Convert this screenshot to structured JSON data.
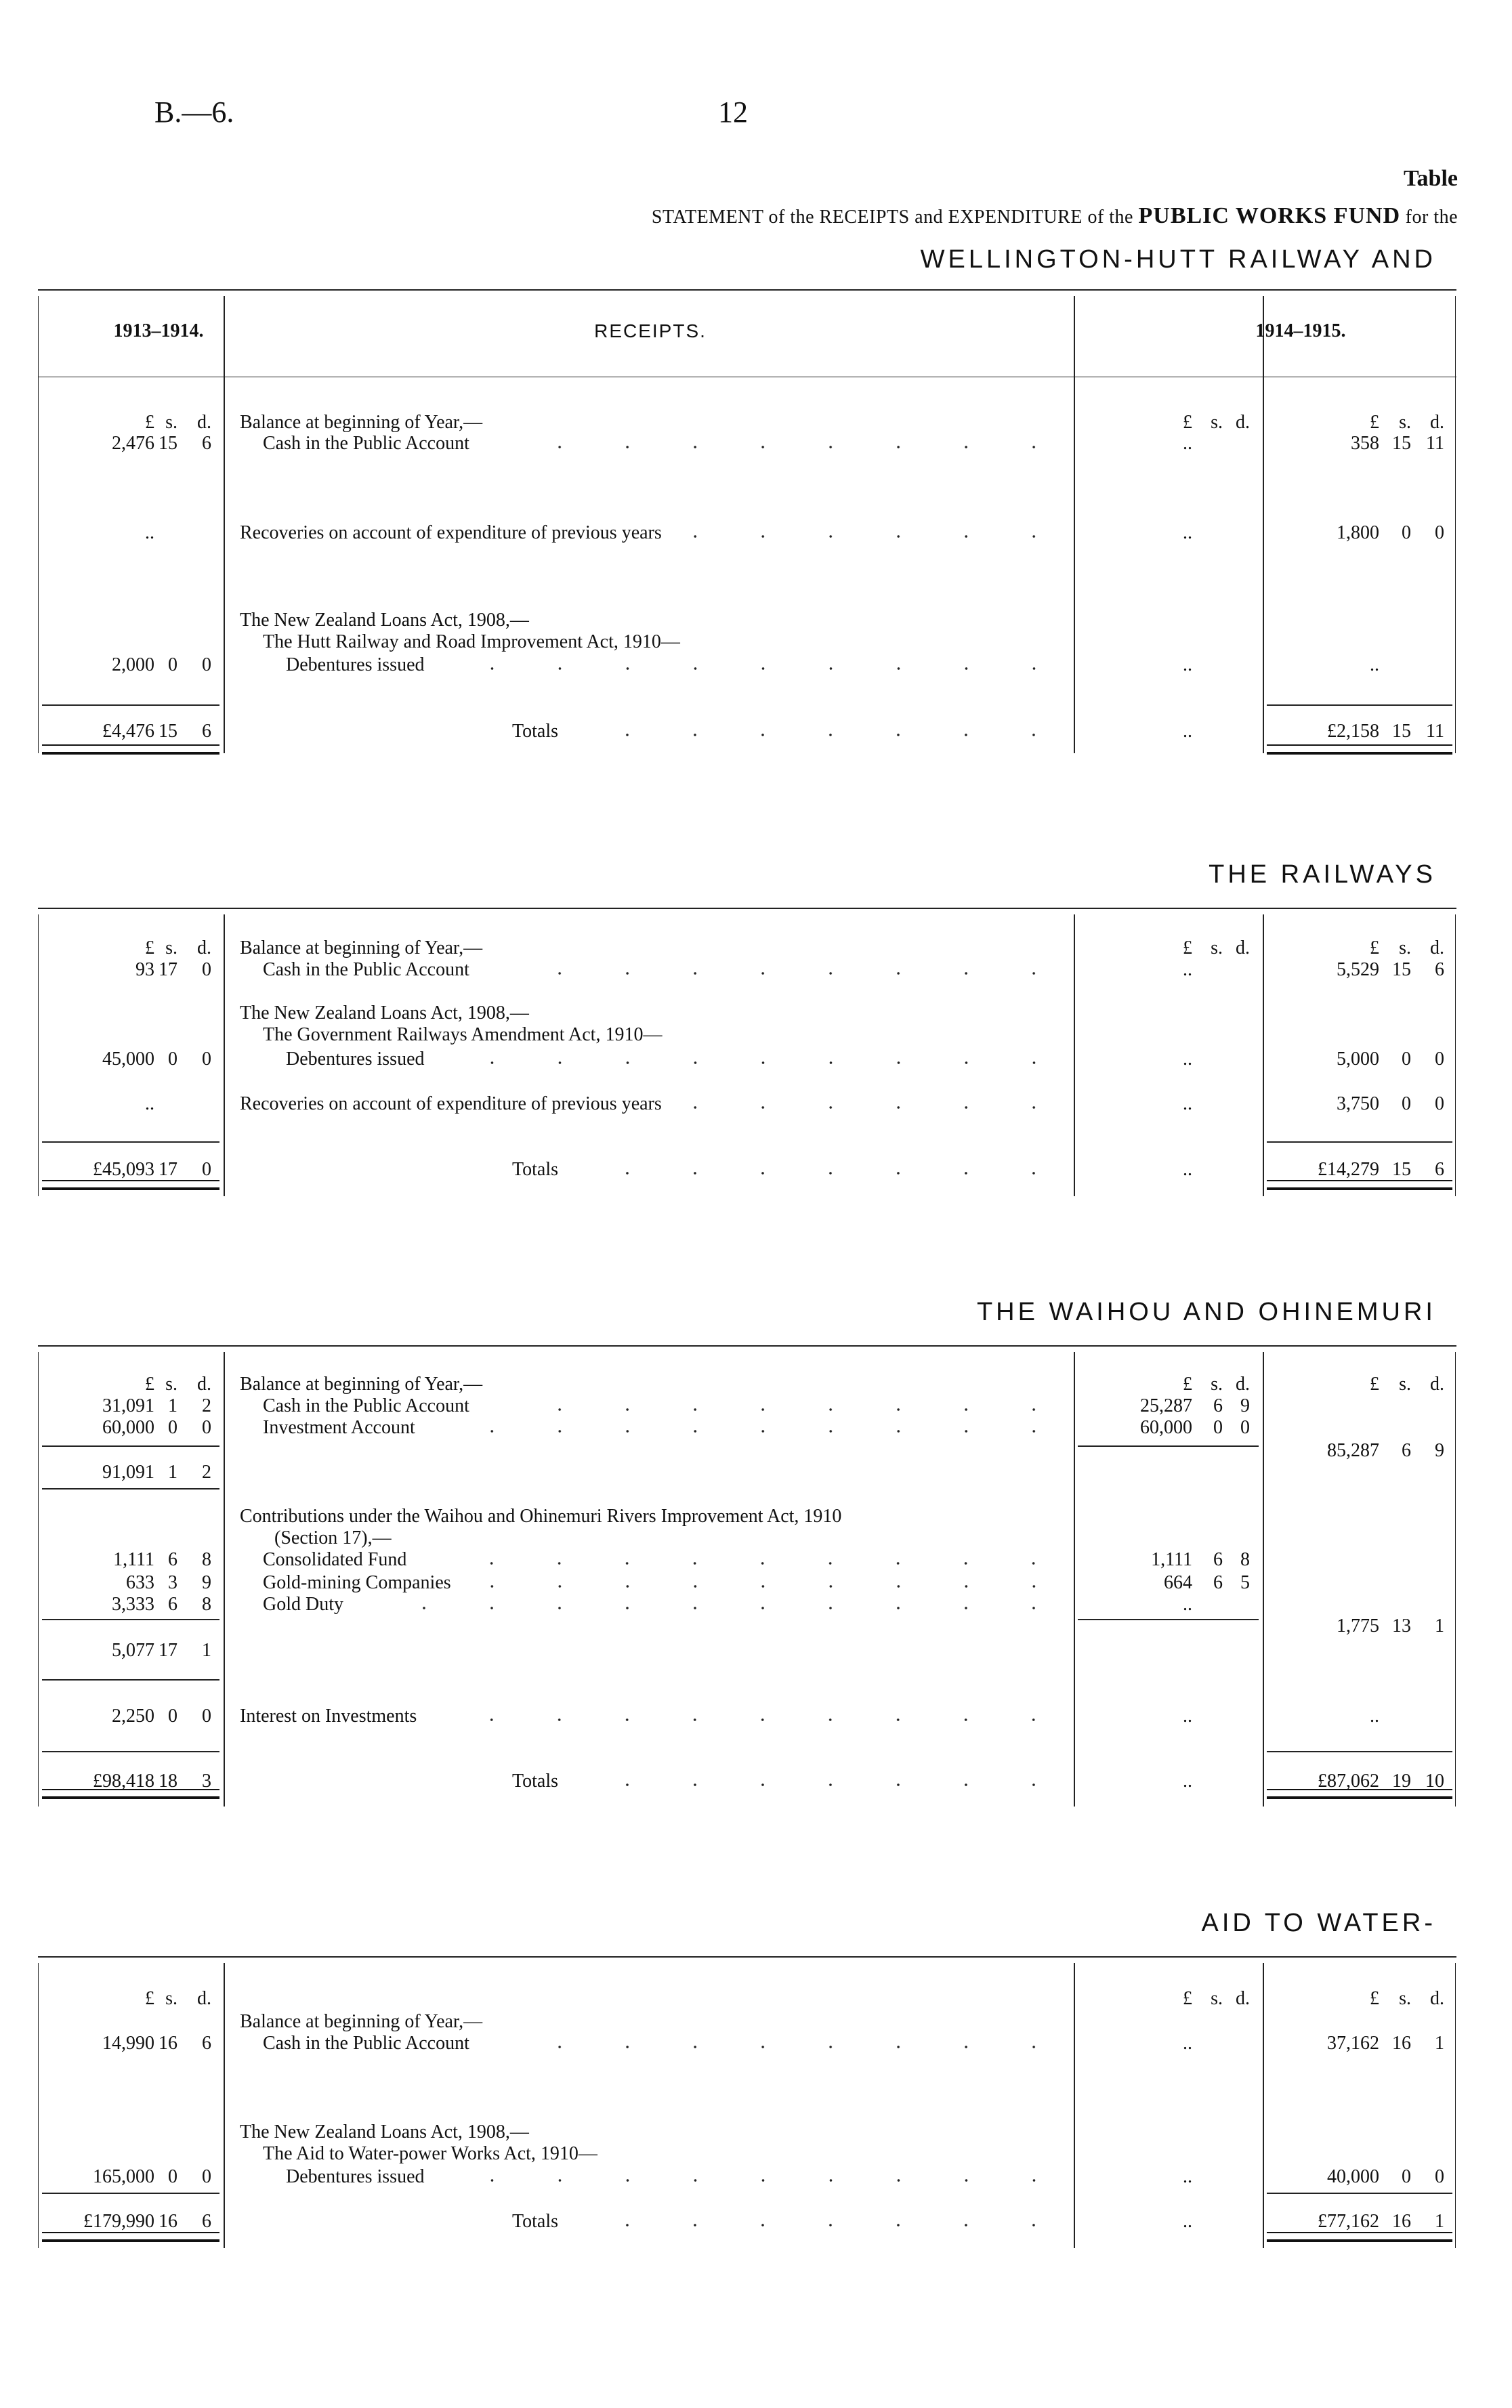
{
  "page": {
    "ref": "B.—6.",
    "number": "12",
    "table_label": "Table",
    "statement_prefix": "STATEMENT of the RECEIPTS and EXPENDITURE of the",
    "statement_fund": "PUBLIC WORKS FUND",
    "statement_suffix": "for the"
  },
  "sections": [
    {
      "title": "WELLINGTON-HUTT RAILWAY AND",
      "header": {
        "left": "1913–1914.",
        "center": "RECEIPTS.",
        "right": "1914–1915."
      },
      "rows": [
        {
          "col1": [
            "£",
            "s.",
            "d."
          ],
          "desc": "Balance at beginning of Year,—",
          "indent": 0,
          "col3": [
            "£",
            "s.",
            "d."
          ],
          "col4": [
            "£",
            "s.",
            "d."
          ]
        },
        {
          "col1": [
            "2,476",
            "15",
            "6"
          ],
          "desc": "Cash in the Public Account",
          "indent": 1,
          "leader": true,
          "col3": [
            "..",
            "",
            ""
          ],
          "col4": [
            "358",
            "15",
            "11"
          ]
        },
        {
          "col1": [
            "..",
            "",
            ""
          ],
          "desc": "Recoveries on account of expenditure of previous years",
          "indent": 0,
          "leader": true,
          "col3": [
            "..",
            "",
            ""
          ],
          "col4": [
            "1,800",
            "0",
            "0"
          ]
        },
        {
          "desc": "The New Zealand Loans Act, 1908,—",
          "indent": 0
        },
        {
          "desc": "The Hutt Railway and Road Improvement Act, 1910—",
          "indent": 1
        },
        {
          "col1": [
            "2,000",
            "0",
            "0"
          ],
          "desc": "Debentures issued",
          "indent": 2,
          "leader": true,
          "col3": [
            "..",
            "",
            ""
          ],
          "col4": [
            "..",
            "",
            ""
          ]
        },
        {
          "col1": [
            "£4,476",
            "15",
            "6"
          ],
          "desc": "Totals",
          "total": true,
          "leader": true,
          "col3": [
            "..",
            "",
            ""
          ],
          "col4": [
            "£2,158",
            "15",
            "11"
          ]
        }
      ]
    },
    {
      "title": "THE RAILWAYS",
      "rows": [
        {
          "col1": [
            "£",
            "s.",
            "d."
          ],
          "desc": "Balance at beginning of Year,—",
          "indent": 0,
          "col3": [
            "£",
            "s.",
            "d."
          ],
          "col4": [
            "£",
            "s.",
            "d."
          ]
        },
        {
          "col1": [
            "93",
            "17",
            "0"
          ],
          "desc": "Cash in the Public Account",
          "indent": 1,
          "leader": true,
          "col3": [
            "..",
            "",
            ""
          ],
          "col4": [
            "5,529",
            "15",
            "6"
          ]
        },
        {
          "desc": "The New Zealand Loans Act, 1908,—",
          "indent": 0
        },
        {
          "desc": "The Government Railways Amendment Act, 1910—",
          "indent": 1
        },
        {
          "col1": [
            "45,000",
            "0",
            "0"
          ],
          "desc": "Debentures issued",
          "indent": 2,
          "leader": true,
          "col3": [
            "..",
            "",
            ""
          ],
          "col4": [
            "5,000",
            "0",
            "0"
          ]
        },
        {
          "col1": [
            "..",
            "",
            ""
          ],
          "desc": "Recoveries on account of expenditure of previous years",
          "indent": 0,
          "leader": true,
          "col3": [
            "..",
            "",
            ""
          ],
          "col4": [
            "3,750",
            "0",
            "0"
          ]
        },
        {
          "col1": [
            "£45,093",
            "17",
            "0"
          ],
          "desc": "Totals",
          "total": true,
          "leader": true,
          "col3": [
            "..",
            "",
            ""
          ],
          "col4": [
            "£14,279",
            "15",
            "6"
          ]
        }
      ]
    },
    {
      "title": "THE WAIHOU AND OHINEMURI",
      "rows": [
        {
          "col1": [
            "£",
            "s.",
            "d."
          ],
          "desc": "Balance at beginning of Year,—",
          "indent": 0,
          "col3": [
            "£",
            "s.",
            "d."
          ],
          "col4": [
            "£",
            "s.",
            "d."
          ]
        },
        {
          "col1": [
            "31,091",
            "1",
            "2"
          ],
          "desc": "Cash in the Public Account",
          "indent": 1,
          "leader": true,
          "col3": [
            "25,287",
            "6",
            "9"
          ]
        },
        {
          "col1": [
            "60,000",
            "0",
            "0"
          ],
          "desc": "Investment Account",
          "indent": 1,
          "leader": true,
          "col3": [
            "60,000",
            "0",
            "0"
          ]
        },
        {
          "col4": [
            "85,287",
            "6",
            "9"
          ]
        },
        {
          "col1": [
            "91,091",
            "1",
            "2"
          ]
        },
        {
          "desc": "Contributions under the Waihou and Ohinemuri Rivers Improvement Act, 1910",
          "indent": 0
        },
        {
          "desc": "(Section 17),—",
          "indent": 1.5
        },
        {
          "col1": [
            "1,111",
            "6",
            "8"
          ],
          "desc": "Consolidated Fund",
          "indent": 1,
          "leader": true,
          "col3": [
            "1,111",
            "6",
            "8"
          ]
        },
        {
          "col1": [
            "633",
            "3",
            "9"
          ],
          "desc": "Gold-mining Companies",
          "indent": 1,
          "leader": true,
          "col3": [
            "664",
            "6",
            "5"
          ]
        },
        {
          "col1": [
            "3,333",
            "6",
            "8"
          ],
          "desc": "Gold Duty",
          "indent": 1,
          "leader": true,
          "col3": [
            "..",
            "",
            ""
          ]
        },
        {
          "col4": [
            "1,775",
            "13",
            "1"
          ]
        },
        {
          "col1": [
            "5,077",
            "17",
            "1"
          ]
        },
        {
          "col1": [
            "2,250",
            "0",
            "0"
          ],
          "desc": "Interest on Investments",
          "indent": 0,
          "leader": true,
          "col3": [
            "..",
            "",
            ""
          ],
          "col4": [
            "..",
            "",
            ""
          ]
        },
        {
          "col1": [
            "£98,418",
            "18",
            "3"
          ],
          "desc": "Totals",
          "total": true,
          "leader": true,
          "col3": [
            "..",
            "",
            ""
          ],
          "col4": [
            "£87,062",
            "19",
            "10"
          ]
        }
      ]
    },
    {
      "title": "AID TO WATER-",
      "rows": [
        {
          "col1": [
            "£",
            "s.",
            "d."
          ],
          "col3": [
            "£",
            "s.",
            "d."
          ],
          "col4": [
            "£",
            "s.",
            "d."
          ]
        },
        {
          "desc": "Balance at beginning of Year,—",
          "indent": 0
        },
        {
          "col1": [
            "14,990",
            "16",
            "6"
          ],
          "desc": "Cash in the Public Account",
          "indent": 1,
          "leader": true,
          "col3": [
            "..",
            "",
            ""
          ],
          "col4": [
            "37,162",
            "16",
            "1"
          ]
        },
        {
          "desc": "The New Zealand Loans Act, 1908,—",
          "indent": 0
        },
        {
          "desc": "The Aid to Water-power Works Act, 1910—",
          "indent": 1
        },
        {
          "col1": [
            "165,000",
            "0",
            "0"
          ],
          "desc": "Debentures issued",
          "indent": 2,
          "leader": true,
          "col3": [
            "..",
            "",
            ""
          ],
          "col4": [
            "40,000",
            "0",
            "0"
          ]
        },
        {
          "col1": [
            "£179,990",
            "16",
            "6"
          ],
          "desc": "Totals",
          "total": true,
          "leader": true,
          "col3": [
            "..",
            "",
            ""
          ],
          "col4": [
            "£77,162",
            "16",
            "1"
          ]
        }
      ]
    }
  ]
}
